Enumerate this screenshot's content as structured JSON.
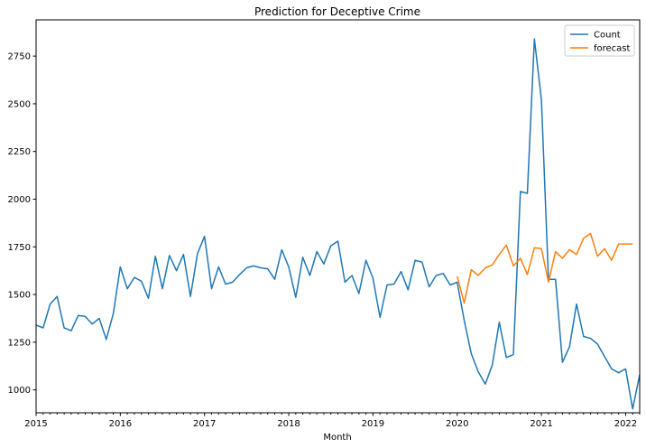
{
  "chart_data": {
    "type": "line",
    "title": "Prediction for Deceptive Crime",
    "xlabel": "Month",
    "ylabel": "",
    "x_start": "2015-01",
    "xlim": [
      "2015-01",
      "2022-03"
    ],
    "ylim": [
      880,
      2940
    ],
    "x_ticks": [
      "2015",
      "2016",
      "2017",
      "2018",
      "2019",
      "2020",
      "2021",
      "2022"
    ],
    "y_ticks": [
      1000,
      1250,
      1500,
      1750,
      2000,
      2250,
      2500,
      2750
    ],
    "legend_position": "top-right",
    "grid": false,
    "series": [
      {
        "name": "Count",
        "color": "#1f77b4",
        "x": [
          "2015-01",
          "2015-02",
          "2015-03",
          "2015-04",
          "2015-05",
          "2015-06",
          "2015-07",
          "2015-08",
          "2015-09",
          "2015-10",
          "2015-11",
          "2015-12",
          "2016-01",
          "2016-02",
          "2016-03",
          "2016-04",
          "2016-05",
          "2016-06",
          "2016-07",
          "2016-08",
          "2016-09",
          "2016-10",
          "2016-11",
          "2016-12",
          "2017-01",
          "2017-02",
          "2017-03",
          "2017-04",
          "2017-05",
          "2017-06",
          "2017-07",
          "2017-08",
          "2017-09",
          "2017-10",
          "2017-11",
          "2017-12",
          "2018-01",
          "2018-02",
          "2018-03",
          "2018-04",
          "2018-05",
          "2018-06",
          "2018-07",
          "2018-08",
          "2018-09",
          "2018-10",
          "2018-11",
          "2018-12",
          "2019-01",
          "2019-02",
          "2019-03",
          "2019-04",
          "2019-05",
          "2019-06",
          "2019-07",
          "2019-08",
          "2019-09",
          "2019-10",
          "2019-11",
          "2019-12",
          "2020-01",
          "2020-02",
          "2020-03",
          "2020-04",
          "2020-05",
          "2020-06",
          "2020-07",
          "2020-08",
          "2020-09",
          "2020-10",
          "2020-11",
          "2020-12",
          "2021-01",
          "2021-02",
          "2021-03",
          "2021-04",
          "2021-05",
          "2021-06",
          "2021-07",
          "2021-08",
          "2021-09",
          "2021-10",
          "2021-11",
          "2021-12",
          "2022-01",
          "2022-02",
          "2022-03"
        ],
        "values": [
          1340,
          1325,
          1450,
          1490,
          1325,
          1310,
          1390,
          1385,
          1345,
          1375,
          1265,
          1400,
          1645,
          1530,
          1590,
          1570,
          1480,
          1700,
          1530,
          1705,
          1625,
          1710,
          1490,
          1715,
          1805,
          1530,
          1645,
          1555,
          1565,
          1605,
          1640,
          1650,
          1640,
          1635,
          1580,
          1735,
          1645,
          1485,
          1695,
          1600,
          1725,
          1660,
          1755,
          1780,
          1565,
          1600,
          1505,
          1680,
          1585,
          1380,
          1550,
          1555,
          1620,
          1525,
          1680,
          1670,
          1540,
          1600,
          1610,
          1550,
          1565,
          1365,
          1190,
          1095,
          1030,
          1130,
          1355,
          1170,
          1185,
          2040,
          2030,
          2840,
          2520,
          1580,
          1580,
          1145,
          1225,
          1450,
          1280,
          1270,
          1240,
          1175,
          1110,
          1090,
          1110,
          900,
          1080
        ]
      },
      {
        "name": "forecast",
        "color": "#ff7f0e",
        "x": [
          "2020-01",
          "2020-02",
          "2020-03",
          "2020-04",
          "2020-05",
          "2020-06",
          "2020-07",
          "2020-08",
          "2020-09",
          "2020-10",
          "2020-11",
          "2020-12",
          "2021-01",
          "2021-02",
          "2021-03",
          "2021-04",
          "2021-05",
          "2021-06",
          "2021-07",
          "2021-08",
          "2021-09",
          "2021-10",
          "2021-11",
          "2021-12",
          "2022-01",
          "2022-02"
        ],
        "values": [
          1595,
          1455,
          1630,
          1600,
          1640,
          1655,
          1710,
          1760,
          1650,
          1690,
          1605,
          1745,
          1740,
          1565,
          1725,
          1690,
          1735,
          1710,
          1795,
          1820,
          1700,
          1740,
          1680,
          1765,
          1765,
          1765
        ]
      }
    ]
  }
}
